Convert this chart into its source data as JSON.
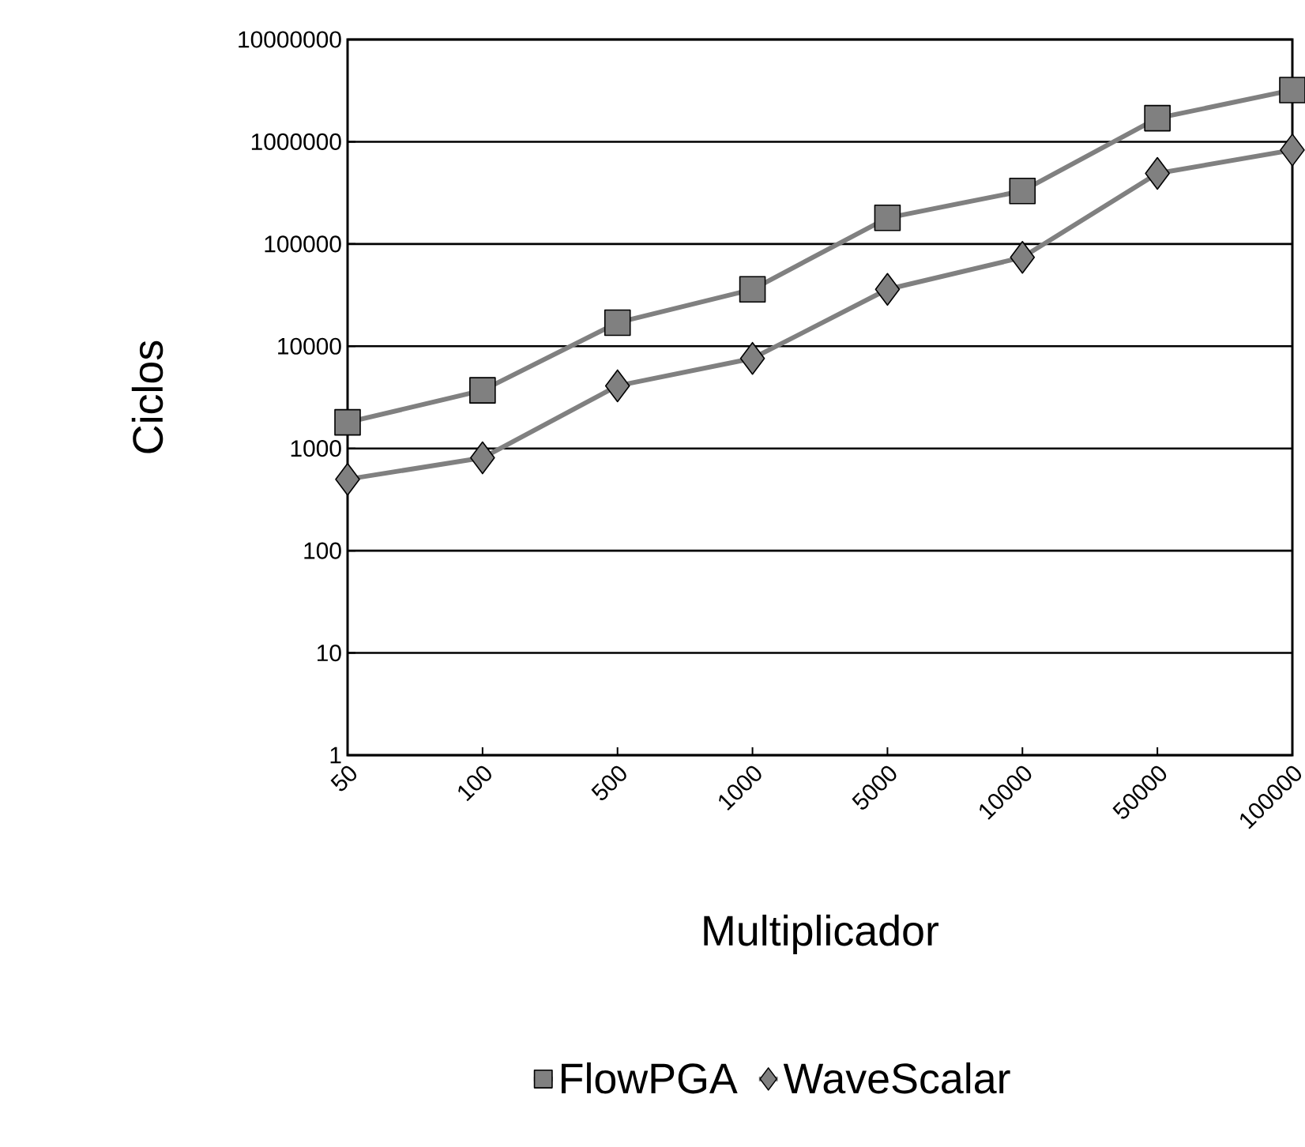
{
  "chart_data": {
    "type": "line",
    "xlabel": "Multiplicador",
    "ylabel": "Ciclos",
    "categories": [
      "50",
      "100",
      "500",
      "1000",
      "5000",
      "10000",
      "50000",
      "100000"
    ],
    "log": "y",
    "ylim": [
      1,
      10000000
    ],
    "yticks": [
      1,
      10,
      100,
      1000,
      10000,
      100000,
      1000000,
      10000000
    ],
    "grid": "y",
    "legend": "bottom",
    "series": [
      {
        "name": "FlowPGA",
        "color": "#808080",
        "marker": "square",
        "values": [
          1800,
          3700,
          17000,
          36000,
          180000,
          330000,
          1700000,
          3200000
        ]
      },
      {
        "name": "WaveScalar",
        "color": "#808080",
        "marker": "diamond",
        "values": [
          500,
          810,
          4100,
          7600,
          36000,
          74000,
          490000,
          830000
        ]
      }
    ]
  }
}
